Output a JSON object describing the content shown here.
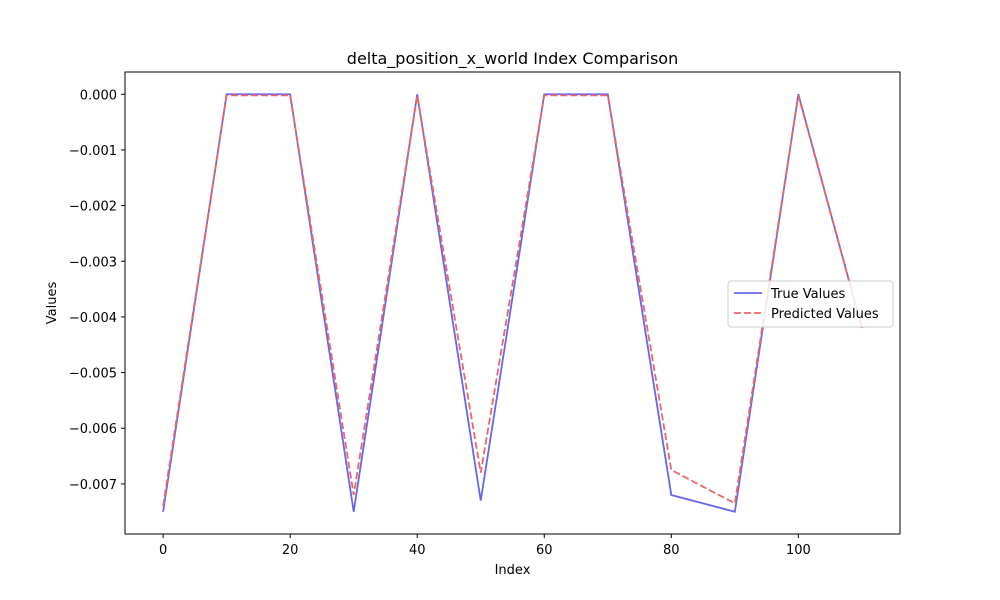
{
  "chart_data": {
    "type": "line",
    "title": "delta_position_x_world Index Comparison",
    "xlabel": "Index",
    "ylabel": "Values",
    "xlim": [
      -6,
      116
    ],
    "ylim": [
      -0.0079,
      0.0004
    ],
    "xticks": [
      0,
      20,
      40,
      60,
      80,
      100
    ],
    "xtick_labels": [
      "0",
      "20",
      "40",
      "60",
      "80",
      "100"
    ],
    "yticks": [
      0.0,
      -0.001,
      -0.002,
      -0.003,
      -0.004,
      -0.005,
      -0.006,
      -0.007
    ],
    "ytick_labels": [
      "0.000",
      "−0.001",
      "−0.002",
      "−0.003",
      "−0.004",
      "−0.005",
      "−0.006",
      "−0.007"
    ],
    "grid": false,
    "legend_position": "center-right",
    "x": [
      0,
      10,
      20,
      30,
      40,
      50,
      60,
      70,
      80,
      90,
      100,
      110
    ],
    "series": [
      {
        "name": "True Values",
        "color": "#6666ee",
        "style": "solid",
        "values": [
          -0.0075,
          0.0,
          0.0,
          -0.0075,
          0.0,
          -0.0073,
          0.0,
          0.0,
          -0.0072,
          -0.0075,
          0.0,
          -0.0042
        ]
      },
      {
        "name": "Predicted Values",
        "color": "#f06464",
        "style": "dashed",
        "values": [
          -0.0074,
          -2e-05,
          -2e-05,
          -0.0072,
          -2e-05,
          -0.0068,
          -2e-05,
          -2e-05,
          -0.00675,
          -0.00735,
          -2e-05,
          -0.0042
        ]
      }
    ]
  }
}
